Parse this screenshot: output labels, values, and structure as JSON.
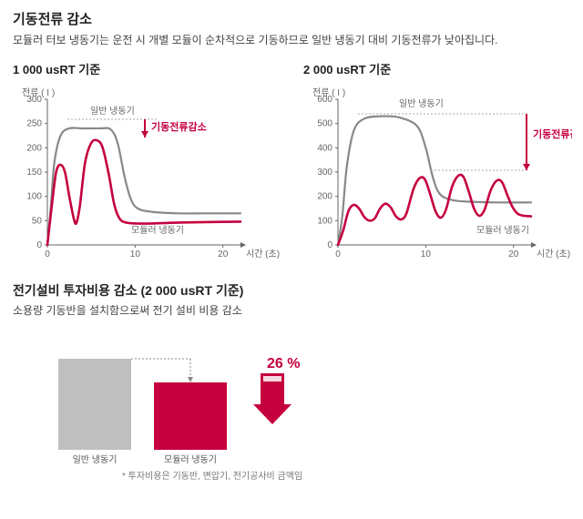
{
  "header": {
    "title": "기동전류 감소",
    "subtitle": "모듈러 터보 냉동기는 운전 시 개별 모듈이 순차적으로 기동하므로 일반 냉동기 대비 기동전류가 낮아집니다."
  },
  "chart1": {
    "heading": "1 000 usRT 기준",
    "ylabel": "전류 ( I )",
    "xlabel": "시간 (초)",
    "ylim": [
      0,
      300
    ],
    "yticks": [
      0,
      50,
      100,
      150,
      200,
      250,
      300
    ],
    "xlim": [
      0,
      22
    ],
    "xticks": [
      0,
      10,
      20
    ],
    "series_normal_label": "일반 냉동기",
    "series_modular_label": "모듈러 냉동기",
    "callout": "기동전류감소",
    "normal_color": "#888888",
    "modular_color": "#c5003e",
    "normal_linewidth": 2.2,
    "modular_linewidth": 2.6,
    "normal_points": [
      [
        0,
        0
      ],
      [
        0.4,
        80
      ],
      [
        0.8,
        170
      ],
      [
        1.5,
        225
      ],
      [
        2.5,
        240
      ],
      [
        4,
        240
      ],
      [
        6,
        240
      ],
      [
        7.2,
        238
      ],
      [
        8,
        210
      ],
      [
        8.8,
        140
      ],
      [
        9.5,
        95
      ],
      [
        10.3,
        75
      ],
      [
        12,
        68
      ],
      [
        15,
        65
      ],
      [
        18,
        65
      ],
      [
        22,
        65
      ]
    ],
    "modular_points": [
      [
        0,
        0
      ],
      [
        0.5,
        80
      ],
      [
        1,
        150
      ],
      [
        1.5,
        165
      ],
      [
        2,
        150
      ],
      [
        2.5,
        100
      ],
      [
        3,
        55
      ],
      [
        3.3,
        45
      ],
      [
        3.7,
        80
      ],
      [
        4.3,
        170
      ],
      [
        5,
        210
      ],
      [
        5.7,
        215
      ],
      [
        6.3,
        200
      ],
      [
        7,
        145
      ],
      [
        7.6,
        85
      ],
      [
        8.2,
        55
      ],
      [
        9,
        46
      ],
      [
        11,
        44
      ],
      [
        15,
        46
      ],
      [
        18,
        47
      ],
      [
        22,
        48
      ]
    ]
  },
  "chart2": {
    "heading": "2 000 usRT 기준",
    "ylabel": "전류 ( I )",
    "xlabel": "시간 (초)",
    "ylim": [
      0,
      600
    ],
    "yticks": [
      0,
      100,
      200,
      300,
      400,
      500,
      600
    ],
    "xlim": [
      0,
      22
    ],
    "xticks": [
      0,
      10,
      20
    ],
    "series_normal_label": "일반 냉동기",
    "series_modular_label": "모듈러 냉동기",
    "callout": "기동전류감소",
    "normal_color": "#888888",
    "modular_color": "#c5003e",
    "normal_linewidth": 2.2,
    "modular_linewidth": 2.6,
    "normal_points": [
      [
        0,
        0
      ],
      [
        0.5,
        120
      ],
      [
        1,
        320
      ],
      [
        1.8,
        470
      ],
      [
        3,
        520
      ],
      [
        5,
        530
      ],
      [
        7,
        525
      ],
      [
        9,
        490
      ],
      [
        10,
        400
      ],
      [
        10.8,
        280
      ],
      [
        11.6,
        210
      ],
      [
        13,
        185
      ],
      [
        15,
        178
      ],
      [
        18,
        175
      ],
      [
        22,
        175
      ]
    ],
    "modular_points": [
      [
        0,
        0
      ],
      [
        0.6,
        60
      ],
      [
        1.2,
        140
      ],
      [
        1.8,
        165
      ],
      [
        2.4,
        150
      ],
      [
        3,
        115
      ],
      [
        3.6,
        100
      ],
      [
        4.2,
        110
      ],
      [
        4.8,
        150
      ],
      [
        5.4,
        170
      ],
      [
        6,
        155
      ],
      [
        6.6,
        118
      ],
      [
        7.2,
        105
      ],
      [
        7.8,
        130
      ],
      [
        8.6,
        230
      ],
      [
        9.3,
        275
      ],
      [
        9.9,
        270
      ],
      [
        10.5,
        210
      ],
      [
        11.1,
        140
      ],
      [
        11.7,
        112
      ],
      [
        12.3,
        145
      ],
      [
        13,
        240
      ],
      [
        13.7,
        285
      ],
      [
        14.3,
        280
      ],
      [
        14.9,
        220
      ],
      [
        15.5,
        150
      ],
      [
        16.1,
        120
      ],
      [
        16.7,
        145
      ],
      [
        17.4,
        225
      ],
      [
        18.1,
        265
      ],
      [
        18.7,
        258
      ],
      [
        19.3,
        205
      ],
      [
        19.9,
        155
      ],
      [
        20.5,
        128
      ],
      [
        21.2,
        120
      ],
      [
        22,
        118
      ]
    ]
  },
  "section2": {
    "title": "전기설비 투자비용 감소 (2 000 usRT 기준)",
    "subtitle": "소용량 기동반을 설치함으로써 전기 설비 비용 감소",
    "bars": [
      {
        "label": "일반 냉동기",
        "height": 100,
        "color": "#bfbfbf"
      },
      {
        "label": "모듈러 냉동기",
        "height": 74,
        "color": "#c5003e"
      }
    ],
    "pct_label": "26 %",
    "footnote": "* 투자비용은 기동반, 변압기, 전기공사비 금액임",
    "arrow_color": "#c5003e",
    "dash_color": "#888888"
  },
  "colors": {
    "text": "#333333",
    "axis": "#666666",
    "bg": "#ffffff"
  }
}
